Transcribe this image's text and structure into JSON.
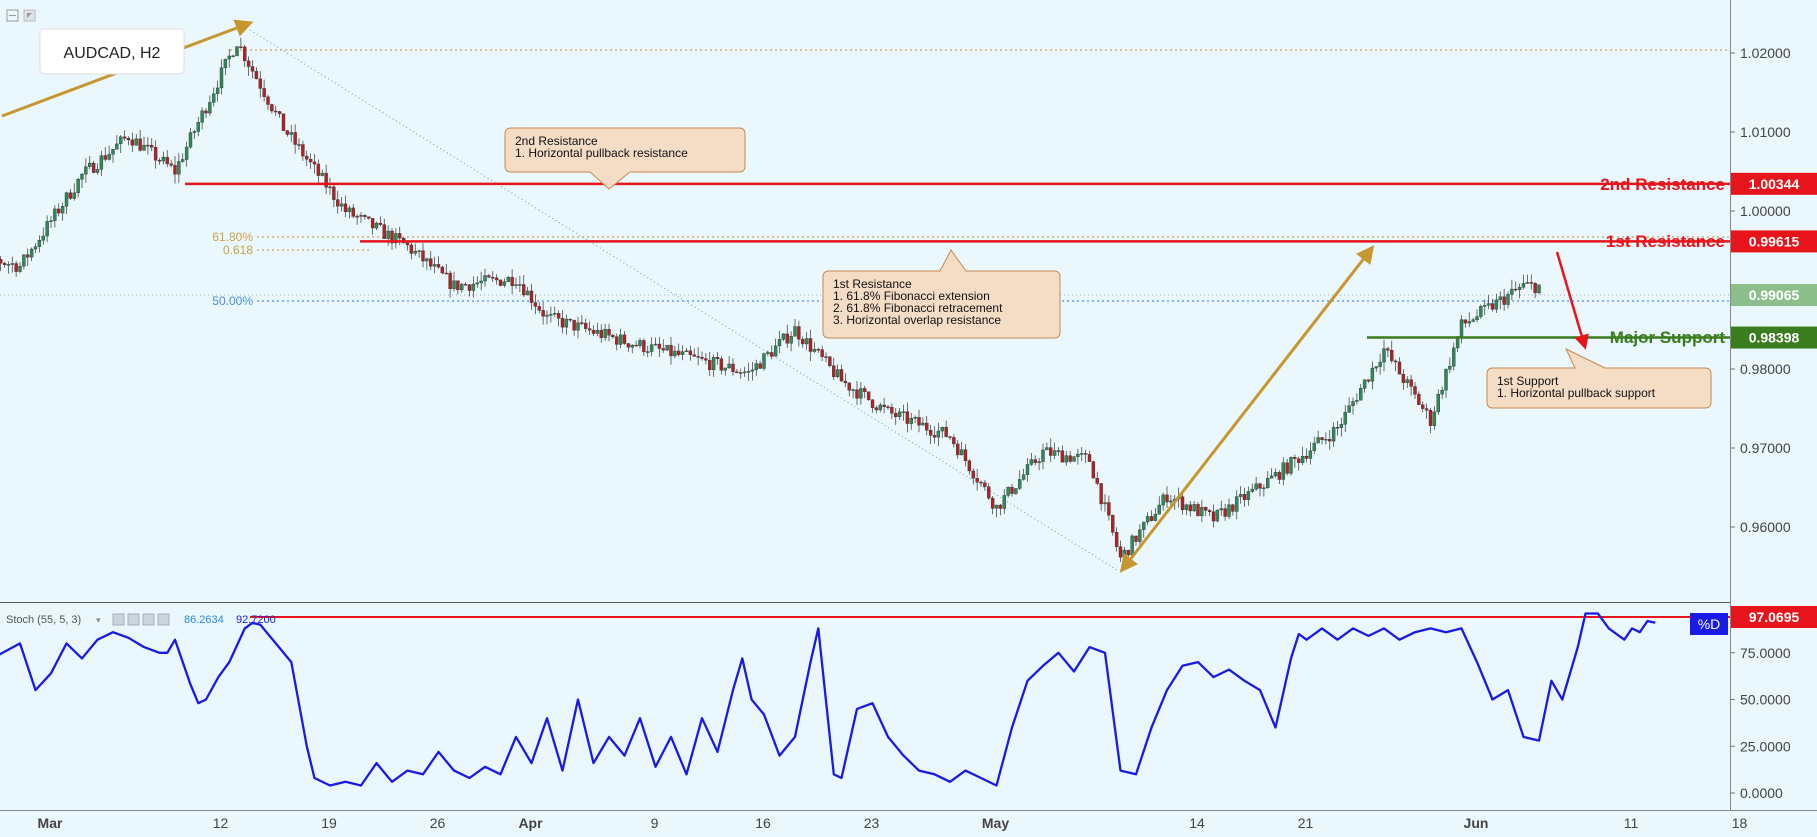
{
  "symbol": "AUDCAD, H2",
  "colors": {
    "background": "#eaf7fd",
    "up_candle": "#2e8b57",
    "down_candle": "#b22222",
    "resistance": "#e8141c",
    "support": "#3a7d1f",
    "stoch": "#1a1ae6",
    "fib": "#c9a24b",
    "fib50": "#4a90d9",
    "arrow": "#c8962e",
    "callout_bg": "#f5dcc4",
    "callout_border": "#c48a4f"
  },
  "price_axis": {
    "ticks": [
      "1.02000",
      "1.01000",
      "1.00000",
      "0.98000",
      "0.97000",
      "0.96000"
    ]
  },
  "stoch_axis": {
    "ticks": [
      "75.0000",
      "50.0000",
      "25.0000",
      "0.0000"
    ]
  },
  "x_axis": {
    "ticks": [
      "Mar",
      "12",
      "19",
      "26",
      "Apr",
      "9",
      "16",
      "23",
      "May",
      "14",
      "21",
      "Jun",
      "11",
      "18"
    ]
  },
  "levels": {
    "second_resistance": {
      "label": "2nd Resistance",
      "value": "1.00344"
    },
    "first_resistance": {
      "label": "1st Resistance",
      "value": "0.99615"
    },
    "current": {
      "value": "0.99065"
    },
    "major_support": {
      "label": "Major Support",
      "value": "0.98398"
    },
    "stoch_level": {
      "value": "97.0695"
    }
  },
  "fib_labels": {
    "ext_pct": "61.80%",
    "ext_ratio": "0.618",
    "retr_pct": "50.00%"
  },
  "callouts": {
    "second_res": {
      "title": "2nd Resistance",
      "lines": [
        "1. Horizontal pullback resistance"
      ]
    },
    "first_res": {
      "title": "1st Resistance",
      "lines": [
        "1. 61.8% Fibonacci extension",
        "2. 61.8% Fibonacci retracement",
        "3. Horizontal overlap resistance"
      ]
    },
    "first_sup": {
      "title": "1st Support",
      "lines": [
        "1. Horizontal pullback support"
      ]
    }
  },
  "stoch_header": {
    "name": "Stoch (55, 5, 3)",
    "k_value": "86.2634",
    "d_value": "92.7200",
    "badge": "%D"
  },
  "chart_data": {
    "type": "line",
    "title": "AUDCAD, H2",
    "series": [
      {
        "name": "AUDCAD",
        "x": [
          "Feb 26",
          "Mar 1",
          "Mar 5",
          "Mar 8",
          "Mar 11",
          "Mar 15",
          "Mar 18",
          "Mar 22",
          "Mar 26",
          "Mar 29",
          "Apr 2",
          "Apr 4",
          "Apr 9",
          "Apr 13",
          "Apr 17",
          "Apr 20",
          "Apr 23",
          "Apr 26",
          "Apr 30",
          "May 3",
          "May 6",
          "May 9",
          "May 11",
          "May 14",
          "May 17",
          "May 21",
          "May 25",
          "May 28",
          "May 31",
          "Jun 2",
          "Jun 6"
        ],
        "y": [
          0.9945,
          0.993,
          1.0045,
          1.0095,
          1.005,
          1.0215,
          1.0105,
          1.0,
          0.9955,
          0.9905,
          0.9915,
          0.9865,
          0.9835,
          0.9815,
          0.9795,
          0.985,
          0.9785,
          0.9745,
          0.9715,
          0.9625,
          0.9695,
          0.9685,
          0.956,
          0.964,
          0.961,
          0.9665,
          0.9725,
          0.9825,
          0.9735,
          0.9855,
          0.9905
        ]
      }
    ],
    "levels": [
      1.00344,
      0.99615,
      0.98398
    ],
    "ylim": [
      0.9535,
      1.0245
    ]
  },
  "stoch_data": [
    [
      -4,
      65
    ],
    [
      -3,
      73
    ],
    [
      -2,
      71
    ],
    [
      0,
      80
    ],
    [
      1,
      55
    ],
    [
      2,
      64
    ],
    [
      3,
      80
    ],
    [
      4,
      72
    ],
    [
      5,
      82
    ],
    [
      6,
      86
    ],
    [
      7,
      83
    ],
    [
      8,
      78
    ],
    [
      9,
      75
    ],
    [
      9.5,
      75
    ],
    [
      10,
      82
    ],
    [
      11,
      58
    ],
    [
      11.5,
      48
    ],
    [
      12,
      50
    ],
    [
      12.8,
      62
    ],
    [
      13.5,
      70
    ],
    [
      14.5,
      88
    ],
    [
      15,
      91
    ],
    [
      15.5,
      90
    ],
    [
      16.5,
      80
    ],
    [
      17.5,
      70
    ],
    [
      18.5,
      25
    ],
    [
      19,
      8
    ],
    [
      20,
      4
    ],
    [
      21,
      6
    ],
    [
      22,
      4
    ],
    [
      23,
      16
    ],
    [
      24,
      6
    ],
    [
      25,
      12
    ],
    [
      26,
      10
    ],
    [
      27,
      22
    ],
    [
      28,
      12
    ],
    [
      29,
      8
    ],
    [
      30,
      14
    ],
    [
      31,
      10
    ],
    [
      32,
      30
    ],
    [
      33,
      16
    ],
    [
      34,
      40
    ],
    [
      35,
      12
    ],
    [
      36,
      50
    ],
    [
      37,
      16
    ],
    [
      38,
      30
    ],
    [
      39,
      20
    ],
    [
      40,
      40
    ],
    [
      41,
      14
    ],
    [
      42,
      30
    ],
    [
      43,
      10
    ],
    [
      44,
      40
    ],
    [
      45,
      22
    ],
    [
      46,
      55
    ],
    [
      46.6,
      72
    ],
    [
      47.2,
      50
    ],
    [
      48,
      42
    ],
    [
      49,
      20
    ],
    [
      50,
      30
    ],
    [
      51,
      70
    ],
    [
      51.5,
      88
    ],
    [
      52.5,
      10
    ],
    [
      53,
      8
    ],
    [
      54,
      45
    ],
    [
      55,
      48
    ],
    [
      56,
      30
    ],
    [
      57,
      20
    ],
    [
      58,
      12
    ],
    [
      59,
      10
    ],
    [
      60,
      6
    ],
    [
      61,
      12
    ],
    [
      62,
      8
    ],
    [
      63,
      4
    ],
    [
      64,
      35
    ],
    [
      65,
      60
    ],
    [
      66,
      68
    ],
    [
      67,
      75
    ],
    [
      68,
      65
    ],
    [
      69,
      78
    ],
    [
      70,
      75
    ],
    [
      71,
      12
    ],
    [
      72,
      10
    ],
    [
      73,
      35
    ],
    [
      74,
      55
    ],
    [
      75,
      68
    ],
    [
      76,
      70
    ],
    [
      77,
      62
    ],
    [
      78,
      66
    ],
    [
      79,
      60
    ],
    [
      80,
      55
    ],
    [
      81,
      35
    ],
    [
      82,
      72
    ],
    [
      82.5,
      85
    ],
    [
      83,
      82
    ],
    [
      84,
      88
    ],
    [
      85,
      82
    ],
    [
      86,
      88
    ],
    [
      87,
      84
    ],
    [
      88,
      88
    ],
    [
      89,
      82
    ],
    [
      90,
      86
    ],
    [
      91,
      88
    ],
    [
      92,
      86
    ],
    [
      93,
      88
    ],
    [
      94,
      70
    ],
    [
      95,
      50
    ],
    [
      96,
      55
    ],
    [
      97,
      30
    ],
    [
      98,
      28
    ],
    [
      98.8,
      60
    ],
    [
      99.5,
      50
    ],
    [
      100.5,
      78
    ],
    [
      101,
      96
    ],
    [
      101.8,
      96
    ],
    [
      102.5,
      88
    ],
    [
      103.5,
      82
    ],
    [
      104,
      88
    ],
    [
      104.5,
      86
    ],
    [
      105,
      92
    ],
    [
      105.5,
      91
    ]
  ]
}
